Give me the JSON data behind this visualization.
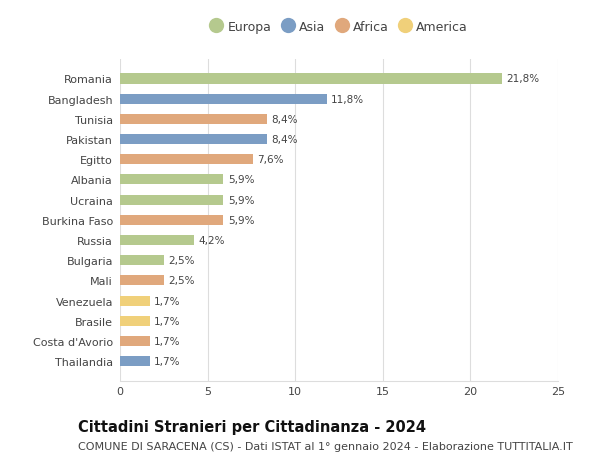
{
  "countries": [
    "Romania",
    "Bangladesh",
    "Tunisia",
    "Pakistan",
    "Egitto",
    "Albania",
    "Ucraina",
    "Burkina Faso",
    "Russia",
    "Bulgaria",
    "Mali",
    "Venezuela",
    "Brasile",
    "Costa d'Avorio",
    "Thailandia"
  ],
  "values": [
    21.8,
    11.8,
    8.4,
    8.4,
    7.6,
    5.9,
    5.9,
    5.9,
    4.2,
    2.5,
    2.5,
    1.7,
    1.7,
    1.7,
    1.7
  ],
  "labels": [
    "21,8%",
    "11,8%",
    "8,4%",
    "8,4%",
    "7,6%",
    "5,9%",
    "5,9%",
    "5,9%",
    "4,2%",
    "2,5%",
    "2,5%",
    "1,7%",
    "1,7%",
    "1,7%",
    "1,7%"
  ],
  "continents": [
    "Europa",
    "Asia",
    "Africa",
    "Asia",
    "Africa",
    "Europa",
    "Europa",
    "Africa",
    "Europa",
    "Europa",
    "Africa",
    "America",
    "America",
    "Africa",
    "Asia"
  ],
  "continent_colors": {
    "Europa": "#b5c98e",
    "Asia": "#7b9dc4",
    "Africa": "#e0a87c",
    "America": "#f0d07a"
  },
  "legend_order": [
    "Europa",
    "Asia",
    "Africa",
    "America"
  ],
  "title": "Cittadini Stranieri per Cittadinanza - 2024",
  "subtitle": "COMUNE DI SARACENA (CS) - Dati ISTAT al 1° gennaio 2024 - Elaborazione TUTTITALIA.IT",
  "xlim": [
    0,
    25
  ],
  "xticks": [
    0,
    5,
    10,
    15,
    20,
    25
  ],
  "background_color": "#ffffff",
  "grid_color": "#dddddd",
  "bar_height": 0.5,
  "title_fontsize": 10.5,
  "subtitle_fontsize": 8,
  "label_fontsize": 7.5,
  "tick_fontsize": 8,
  "legend_fontsize": 9
}
